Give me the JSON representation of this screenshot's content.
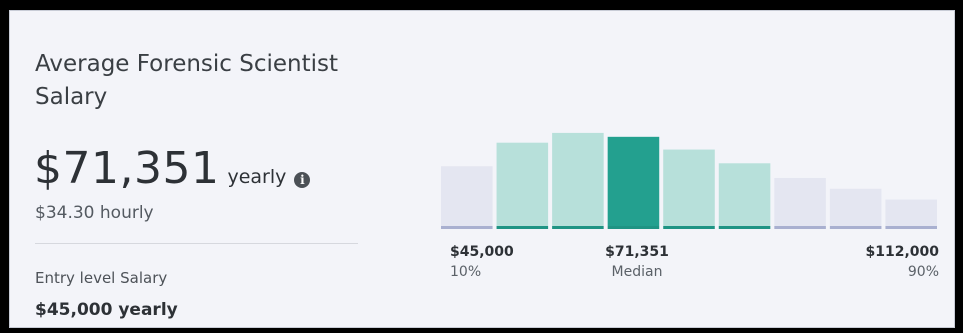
{
  "card": {
    "title": "Average Forensic Scientist Salary",
    "salary_amount": "$71,351",
    "salary_unit": "yearly",
    "info_icon": "info-icon",
    "hourly": "$34.30 hourly",
    "entry_label": "Entry level Salary",
    "entry_value": "$45,000 yearly"
  },
  "colors": {
    "background": "#f3f4f9",
    "bar_outside_range": "#e4e6f1",
    "bar_in_range": "#b7e0da",
    "bar_median": "#23a08f",
    "baseline_in_range": "#1f9484",
    "baseline_outside_range": "#a9b0d0"
  },
  "chart_data": {
    "type": "bar",
    "title": "",
    "xlabel": "",
    "ylabel": "",
    "values": [
      0.61,
      0.85,
      0.95,
      0.91,
      0.78,
      0.64,
      0.49,
      0.38,
      0.27
    ],
    "highlight": [
      "outside",
      "in_range",
      "in_range",
      "median",
      "in_range",
      "in_range",
      "outside",
      "outside",
      "outside"
    ],
    "ylim": [
      0,
      1
    ],
    "grid": false,
    "markers": [
      {
        "value": "$45,000",
        "percentile": "10%"
      },
      {
        "value": "$71,351",
        "percentile": "Median"
      },
      {
        "value": "$112,000",
        "percentile": "90%"
      }
    ]
  }
}
